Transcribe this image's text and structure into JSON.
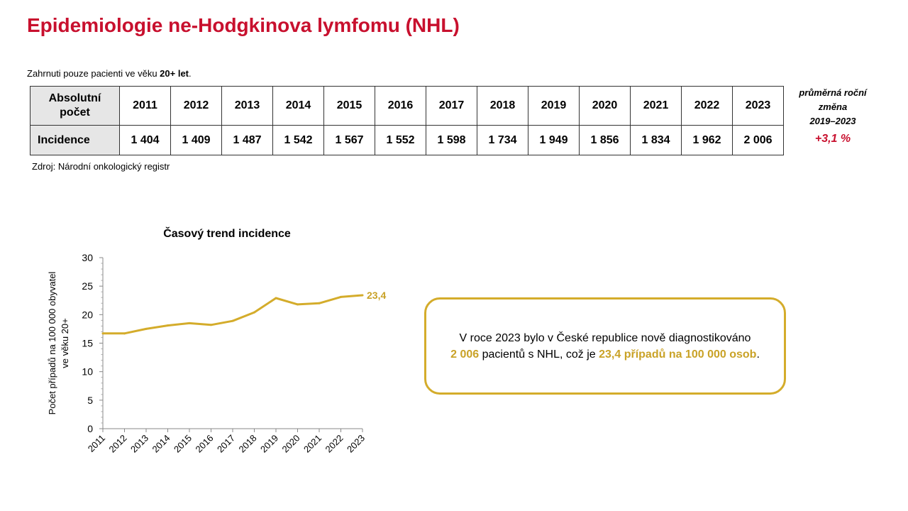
{
  "title": "Epidemiologie ne-Hodgkinova lymfomu (NHL)",
  "note": {
    "prefix": "Zahrnuti pouze pacienti ve věku ",
    "bold": "20+ let",
    "suffix": "."
  },
  "table": {
    "header_label_line1": "Absolutní",
    "header_label_line2": "počet",
    "row_label": "Incidence",
    "years": [
      "2011",
      "2012",
      "2013",
      "2014",
      "2015",
      "2016",
      "2017",
      "2018",
      "2019",
      "2020",
      "2021",
      "2022",
      "2023"
    ],
    "values": [
      "1 404",
      "1 409",
      "1 487",
      "1 542",
      "1 567",
      "1 552",
      "1 598",
      "1 734",
      "1 949",
      "1 856",
      "1 834",
      "1 962",
      "2 006"
    ]
  },
  "avg_change": {
    "line1": "průměrná roční",
    "line2": "změna",
    "line3": "2019–2023",
    "value": "+3,1 %"
  },
  "source": "Zdroj: Národní onkologický registr",
  "summary": {
    "line1": "V roce 2023 bylo v České republice nově diagnostikováno",
    "count": "2 006",
    "mid": " pacientů s NHL, což je ",
    "rate": "23,4  případů na 100 000 osob",
    "end": "."
  },
  "colors": {
    "title": "#c8102e",
    "accent": "#c9a227",
    "line": "#d4ac2b"
  },
  "chart_data": {
    "type": "line",
    "title": "Časový trend incidence",
    "xlabel": "",
    "ylabel_line1": "Počet případů na 100 000 obyvatel",
    "ylabel_line2": "ve věku 20+",
    "x": [
      "2011",
      "2012",
      "2013",
      "2014",
      "2015",
      "2016",
      "2017",
      "2018",
      "2019",
      "2020",
      "2021",
      "2022",
      "2023"
    ],
    "series": [
      {
        "values": [
          16.7,
          16.7,
          17.5,
          18.1,
          18.5,
          18.2,
          18.9,
          20.4,
          22.9,
          21.8,
          22.0,
          23.1,
          23.4
        ]
      }
    ],
    "ylim": [
      0,
      30
    ],
    "yticks": [
      0,
      5,
      10,
      15,
      20,
      25,
      30
    ],
    "end_label": "23,4",
    "grid": false
  }
}
